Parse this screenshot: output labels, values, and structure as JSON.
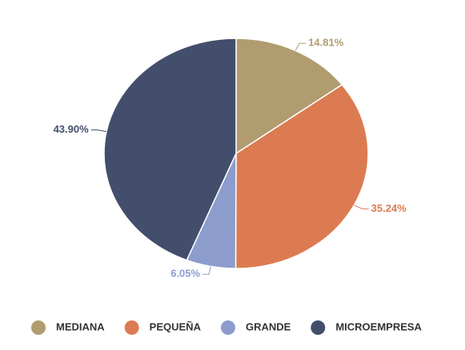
{
  "chart_data": {
    "type": "pie",
    "categories": [
      "MEDIANA",
      "PEQUEÑA",
      "GRANDE",
      "MICROEMPRESA"
    ],
    "values": [
      14.81,
      35.24,
      6.05,
      43.9
    ],
    "value_labels": [
      "14.81%",
      "35.24%",
      "6.05%",
      "43.90%"
    ],
    "colors": [
      "#b09c6e",
      "#dc7b52",
      "#8c9ccc",
      "#434e6c"
    ],
    "legend": "bottom"
  }
}
